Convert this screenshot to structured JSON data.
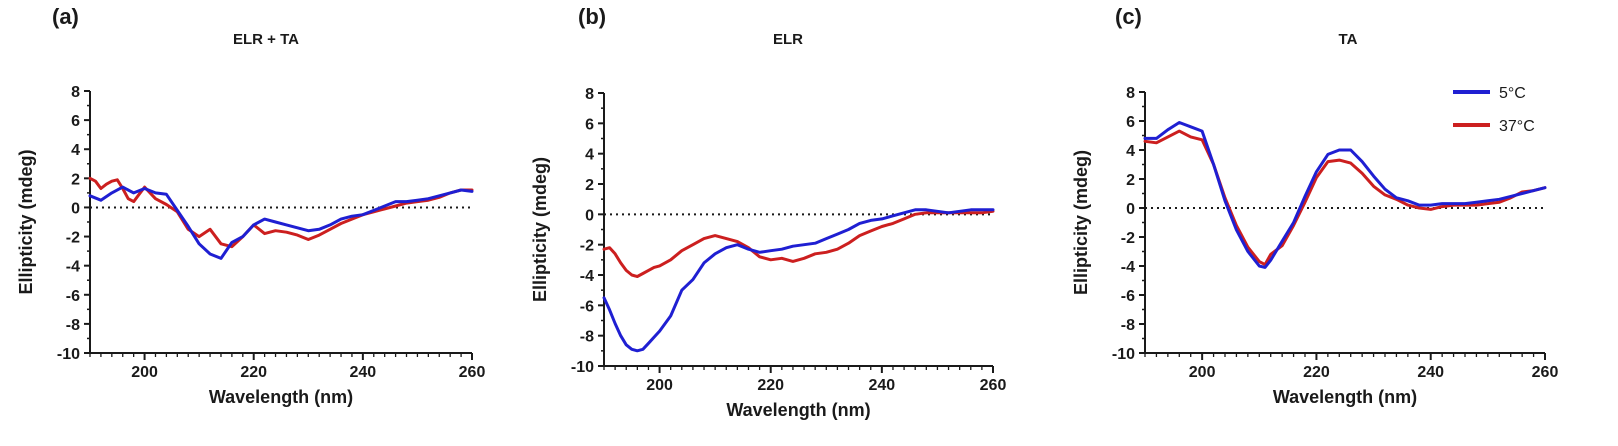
{
  "colors": {
    "blue": "#1f1fd2",
    "red": "#cc1f1f",
    "axis": "#1a1a1a"
  },
  "chart_data": [
    {
      "type": "line",
      "panel_label": "(a)",
      "title": "ELR + TA",
      "xlabel": "Wavelength (nm)",
      "ylabel": "Ellipticity (mdeg)",
      "xlim": [
        190,
        260
      ],
      "ylim": [
        -10,
        8
      ],
      "xticks": [
        "200",
        "220",
        "240",
        "260"
      ],
      "yticks": [
        "8",
        "6",
        "4",
        "2",
        "0",
        "-2",
        "-4",
        "-6",
        "-8",
        "-10"
      ],
      "zero_line": true,
      "series": [
        {
          "name": "5°C",
          "color": "#1f1fd2",
          "x": [
            190,
            192,
            194,
            196,
            198,
            200,
            202,
            204,
            206,
            208,
            210,
            212,
            214,
            216,
            218,
            220,
            222,
            224,
            226,
            228,
            230,
            232,
            234,
            236,
            238,
            240,
            242,
            244,
            246,
            248,
            250,
            252,
            254,
            256,
            258,
            260
          ],
          "y": [
            0.8,
            0.5,
            1.0,
            1.4,
            1.0,
            1.3,
            1.0,
            0.9,
            -0.2,
            -1.3,
            -2.5,
            -3.2,
            -3.5,
            -2.4,
            -2.0,
            -1.2,
            -0.8,
            -1.0,
            -1.2,
            -1.4,
            -1.6,
            -1.5,
            -1.2,
            -0.8,
            -0.6,
            -0.5,
            -0.2,
            0.1,
            0.4,
            0.4,
            0.5,
            0.6,
            0.8,
            1.0,
            1.2,
            1.1
          ]
        },
        {
          "name": "37°C",
          "color": "#cc1f1f",
          "x": [
            190,
            191,
            192,
            193,
            194,
            195,
            196,
            197,
            198,
            199,
            200,
            202,
            204,
            206,
            208,
            210,
            212,
            214,
            216,
            218,
            220,
            222,
            224,
            226,
            228,
            230,
            232,
            234,
            236,
            238,
            240,
            242,
            244,
            246,
            248,
            250,
            252,
            254,
            256,
            258,
            260
          ],
          "y": [
            2.0,
            1.8,
            1.3,
            1.6,
            1.8,
            1.9,
            1.3,
            0.6,
            0.4,
            0.9,
            1.4,
            0.6,
            0.2,
            -0.3,
            -1.5,
            -2.0,
            -1.5,
            -2.5,
            -2.7,
            -2.0,
            -1.2,
            -1.8,
            -1.6,
            -1.7,
            -1.9,
            -2.2,
            -1.9,
            -1.5,
            -1.1,
            -0.8,
            -0.5,
            -0.3,
            -0.1,
            0.1,
            0.3,
            0.4,
            0.5,
            0.7,
            1.0,
            1.2,
            1.2
          ]
        }
      ]
    },
    {
      "type": "line",
      "panel_label": "(b)",
      "title": "ELR",
      "xlabel": "Wavelength (nm)",
      "ylabel": "Ellipticity (mdeg)",
      "xlim": [
        190,
        260
      ],
      "ylim": [
        -10,
        8
      ],
      "xticks": [
        "200",
        "220",
        "240",
        "260"
      ],
      "yticks": [
        "8",
        "6",
        "4",
        "2",
        "0",
        "-2",
        "-4",
        "-6",
        "-8",
        "-10"
      ],
      "zero_line": true,
      "series": [
        {
          "name": "5°C",
          "color": "#1f1fd2",
          "x": [
            190,
            191,
            192,
            193,
            194,
            195,
            196,
            197,
            198,
            199,
            200,
            202,
            204,
            206,
            208,
            210,
            212,
            214,
            216,
            218,
            220,
            222,
            224,
            226,
            228,
            230,
            232,
            234,
            236,
            238,
            240,
            242,
            244,
            246,
            248,
            250,
            252,
            254,
            256,
            258,
            260
          ],
          "y": [
            -5.5,
            -6.3,
            -7.2,
            -8.0,
            -8.6,
            -8.9,
            -9.0,
            -8.9,
            -8.5,
            -8.1,
            -7.7,
            -6.7,
            -5.0,
            -4.3,
            -3.2,
            -2.6,
            -2.2,
            -2.0,
            -2.3,
            -2.5,
            -2.4,
            -2.3,
            -2.1,
            -2.0,
            -1.9,
            -1.6,
            -1.3,
            -1.0,
            -0.6,
            -0.4,
            -0.3,
            -0.1,
            0.1,
            0.3,
            0.3,
            0.2,
            0.1,
            0.2,
            0.3,
            0.3,
            0.3
          ]
        },
        {
          "name": "37°C",
          "color": "#cc1f1f",
          "x": [
            190,
            191,
            192,
            193,
            194,
            195,
            196,
            197,
            198,
            199,
            200,
            202,
            204,
            206,
            208,
            210,
            212,
            214,
            216,
            218,
            220,
            222,
            224,
            226,
            228,
            230,
            232,
            234,
            236,
            238,
            240,
            242,
            244,
            246,
            248,
            250,
            252,
            254,
            256,
            258,
            260
          ],
          "y": [
            -2.3,
            -2.2,
            -2.6,
            -3.2,
            -3.7,
            -4.0,
            -4.1,
            -3.9,
            -3.7,
            -3.5,
            -3.4,
            -3.0,
            -2.4,
            -2.0,
            -1.6,
            -1.4,
            -1.6,
            -1.8,
            -2.2,
            -2.8,
            -3.0,
            -2.9,
            -3.1,
            -2.9,
            -2.6,
            -2.5,
            -2.3,
            -1.9,
            -1.4,
            -1.1,
            -0.8,
            -0.6,
            -0.3,
            0.0,
            0.1,
            0.1,
            0.1,
            0.1,
            0.1,
            0.1,
            0.2
          ]
        }
      ]
    },
    {
      "type": "line",
      "panel_label": "(c)",
      "title": "TA",
      "xlabel": "Wavelength (nm)",
      "ylabel": "Ellipticity (mdeg)",
      "xlim": [
        190,
        260
      ],
      "ylim": [
        -10,
        8
      ],
      "xticks": [
        "200",
        "220",
        "240",
        "260"
      ],
      "yticks": [
        "8",
        "6",
        "4",
        "2",
        "0",
        "-2",
        "-4",
        "-6",
        "-8",
        "-10"
      ],
      "zero_line": true,
      "legend": {
        "placement": "top-right",
        "entries": [
          "5°C",
          "37°C"
        ]
      },
      "series": [
        {
          "name": "5°C",
          "color": "#1f1fd2",
          "x": [
            190,
            192,
            194,
            196,
            198,
            200,
            202,
            204,
            206,
            208,
            210,
            211,
            212,
            214,
            216,
            218,
            220,
            222,
            224,
            226,
            228,
            230,
            232,
            234,
            236,
            238,
            240,
            242,
            244,
            246,
            248,
            250,
            252,
            254,
            256,
            258,
            260
          ],
          "y": [
            4.8,
            4.8,
            5.4,
            5.9,
            5.6,
            5.3,
            3.0,
            0.5,
            -1.5,
            -3.0,
            -4.0,
            -4.1,
            -3.6,
            -2.3,
            -1.0,
            0.8,
            2.5,
            3.7,
            4.0,
            4.0,
            3.2,
            2.2,
            1.3,
            0.7,
            0.5,
            0.2,
            0.2,
            0.3,
            0.3,
            0.3,
            0.4,
            0.5,
            0.6,
            0.8,
            1.0,
            1.2,
            1.4
          ]
        },
        {
          "name": "37°C",
          "color": "#cc1f1f",
          "x": [
            190,
            192,
            194,
            196,
            198,
            200,
            202,
            204,
            206,
            208,
            210,
            211,
            212,
            214,
            216,
            218,
            220,
            222,
            224,
            226,
            228,
            230,
            232,
            234,
            236,
            238,
            240,
            242,
            244,
            246,
            248,
            250,
            252,
            254,
            256,
            258,
            260
          ],
          "y": [
            4.6,
            4.5,
            4.9,
            5.3,
            4.9,
            4.7,
            3.0,
            0.7,
            -1.2,
            -2.7,
            -3.7,
            -3.9,
            -3.2,
            -2.6,
            -1.2,
            0.4,
            2.1,
            3.2,
            3.3,
            3.1,
            2.4,
            1.5,
            0.9,
            0.6,
            0.2,
            0.0,
            -0.1,
            0.1,
            0.2,
            0.2,
            0.2,
            0.3,
            0.4,
            0.7,
            1.1,
            1.2,
            1.4
          ]
        }
      ]
    }
  ]
}
